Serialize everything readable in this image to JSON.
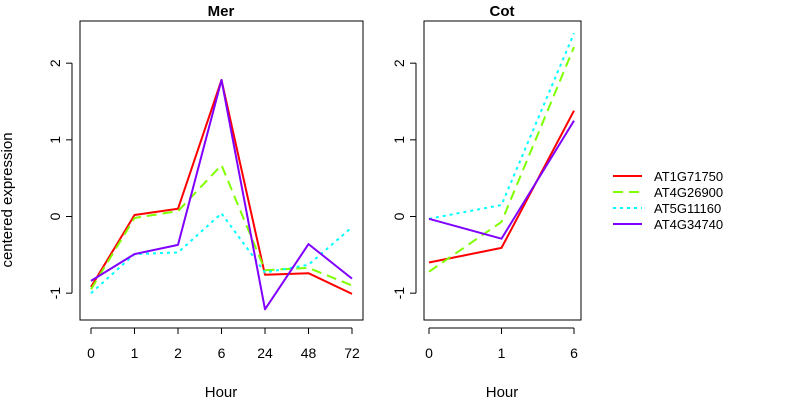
{
  "ylabel": "centered expression",
  "chart_data": [
    {
      "type": "line",
      "title": "Mer",
      "xlabel": "Hour",
      "ylabel": "centered expression",
      "categories": [
        "0",
        "1",
        "2",
        "6",
        "24",
        "48",
        "72"
      ],
      "ylim": [
        -1.35,
        2.55
      ],
      "yticks": [
        -1,
        0,
        1,
        2
      ],
      "grid": false,
      "series": [
        {
          "name": "AT1G71750",
          "color": "#ff0000",
          "dash": "solid",
          "values": [
            -0.92,
            0.02,
            0.1,
            1.78,
            -0.76,
            -0.74,
            -1.01
          ]
        },
        {
          "name": "AT4G26900",
          "color": "#80ff00",
          "dash": "dashed",
          "values": [
            -0.95,
            -0.02,
            0.07,
            0.67,
            -0.7,
            -0.67,
            -0.9
          ]
        },
        {
          "name": "AT5G11160",
          "color": "#00ffff",
          "dash": "dotted",
          "values": [
            -1.0,
            -0.49,
            -0.47,
            0.04,
            -0.73,
            -0.63,
            -0.14
          ]
        },
        {
          "name": "AT4G34740",
          "color": "#8000ff",
          "dash": "solid",
          "values": [
            -0.84,
            -0.49,
            -0.37,
            1.78,
            -1.21,
            -0.36,
            -0.81
          ]
        }
      ]
    },
    {
      "type": "line",
      "title": "Cot",
      "xlabel": "Hour",
      "ylabel": "",
      "categories": [
        "0",
        "1",
        "6"
      ],
      "ylim": [
        -1.35,
        2.55
      ],
      "yticks": [
        -1,
        0,
        1,
        2
      ],
      "grid": false,
      "series": [
        {
          "name": "AT1G71750",
          "color": "#ff0000",
          "dash": "solid",
          "values": [
            -0.6,
            -0.41,
            1.38
          ]
        },
        {
          "name": "AT4G26900",
          "color": "#80ff00",
          "dash": "dashed",
          "values": [
            -0.72,
            -0.07,
            2.21
          ]
        },
        {
          "name": "AT5G11160",
          "color": "#00ffff",
          "dash": "dotted",
          "values": [
            -0.03,
            0.15,
            2.39
          ]
        },
        {
          "name": "AT4G34740",
          "color": "#8000ff",
          "dash": "solid",
          "values": [
            -0.03,
            -0.29,
            1.25
          ]
        }
      ]
    }
  ],
  "legend": {
    "placement": "right",
    "items": [
      {
        "label": "AT1G71750",
        "color": "#ff0000",
        "dash": "solid"
      },
      {
        "label": "AT4G26900",
        "color": "#80ff00",
        "dash": "dashed"
      },
      {
        "label": "AT5G11160",
        "color": "#00ffff",
        "dash": "dotted"
      },
      {
        "label": "AT4G34740",
        "color": "#8000ff",
        "dash": "solid"
      }
    ]
  }
}
